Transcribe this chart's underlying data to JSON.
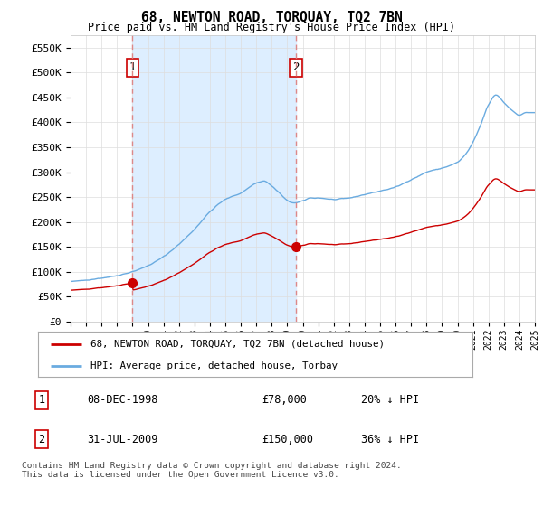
{
  "title": "68, NEWTON ROAD, TORQUAY, TQ2 7BN",
  "subtitle": "Price paid vs. HM Land Registry's House Price Index (HPI)",
  "ylim": [
    0,
    575000
  ],
  "yticks": [
    0,
    50000,
    100000,
    150000,
    200000,
    250000,
    300000,
    350000,
    400000,
    450000,
    500000,
    550000
  ],
  "ytick_labels": [
    "£0",
    "£50K",
    "£100K",
    "£150K",
    "£200K",
    "£250K",
    "£300K",
    "£350K",
    "£400K",
    "£450K",
    "£500K",
    "£550K"
  ],
  "hpi_color": "#6aabe0",
  "price_color": "#cc0000",
  "vline_color": "#dd8888",
  "shade_color": "#ddeeff",
  "purchase1_year": 1999.0,
  "purchase1_price": 78000,
  "purchase1_label": "1",
  "purchase2_year": 2009.58,
  "purchase2_price": 150000,
  "purchase2_label": "2",
  "legend_line1": "68, NEWTON ROAD, TORQUAY, TQ2 7BN (detached house)",
  "legend_line2": "HPI: Average price, detached house, Torbay",
  "table_row1": [
    "1",
    "08-DEC-1998",
    "£78,000",
    "20% ↓ HPI"
  ],
  "table_row2": [
    "2",
    "31-JUL-2009",
    "£150,000",
    "36% ↓ HPI"
  ],
  "footnote": "Contains HM Land Registry data © Crown copyright and database right 2024.\nThis data is licensed under the Open Government Licence v3.0.",
  "background_color": "#ffffff",
  "grid_color": "#dddddd"
}
